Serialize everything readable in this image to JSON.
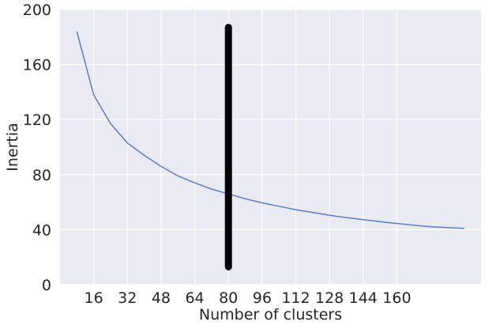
{
  "chart_data": {
    "type": "line",
    "title": "",
    "xlabel": "Number of clusters",
    "ylabel": "Inertia",
    "xlim": [
      0,
      200
    ],
    "ylim": [
      0,
      200
    ],
    "xticks": [
      16,
      32,
      48,
      64,
      80,
      96,
      112,
      128,
      144,
      160
    ],
    "yticks": [
      0,
      40,
      80,
      120,
      160,
      200
    ],
    "grid": true,
    "background_color": "#eaeaf2",
    "series": [
      {
        "color": "#5b7fc7",
        "x": [
          8,
          16,
          24,
          32,
          40,
          48,
          56,
          64,
          72,
          80,
          88,
          96,
          104,
          112,
          120,
          128,
          136,
          144,
          152,
          160,
          168,
          176,
          184,
          192
        ],
        "y": [
          184,
          138,
          117,
          103,
          94,
          86,
          79,
          74,
          69.5,
          66,
          62.5,
          59.5,
          57,
          54.5,
          52.5,
          50.5,
          48.8,
          47.3,
          45.8,
          44.5,
          43.3,
          42.2,
          41.5,
          41
        ]
      }
    ],
    "annotation": {
      "type": "vertical-marker",
      "x": 80,
      "y_range": [
        13,
        187
      ],
      "color": "#000000"
    }
  }
}
